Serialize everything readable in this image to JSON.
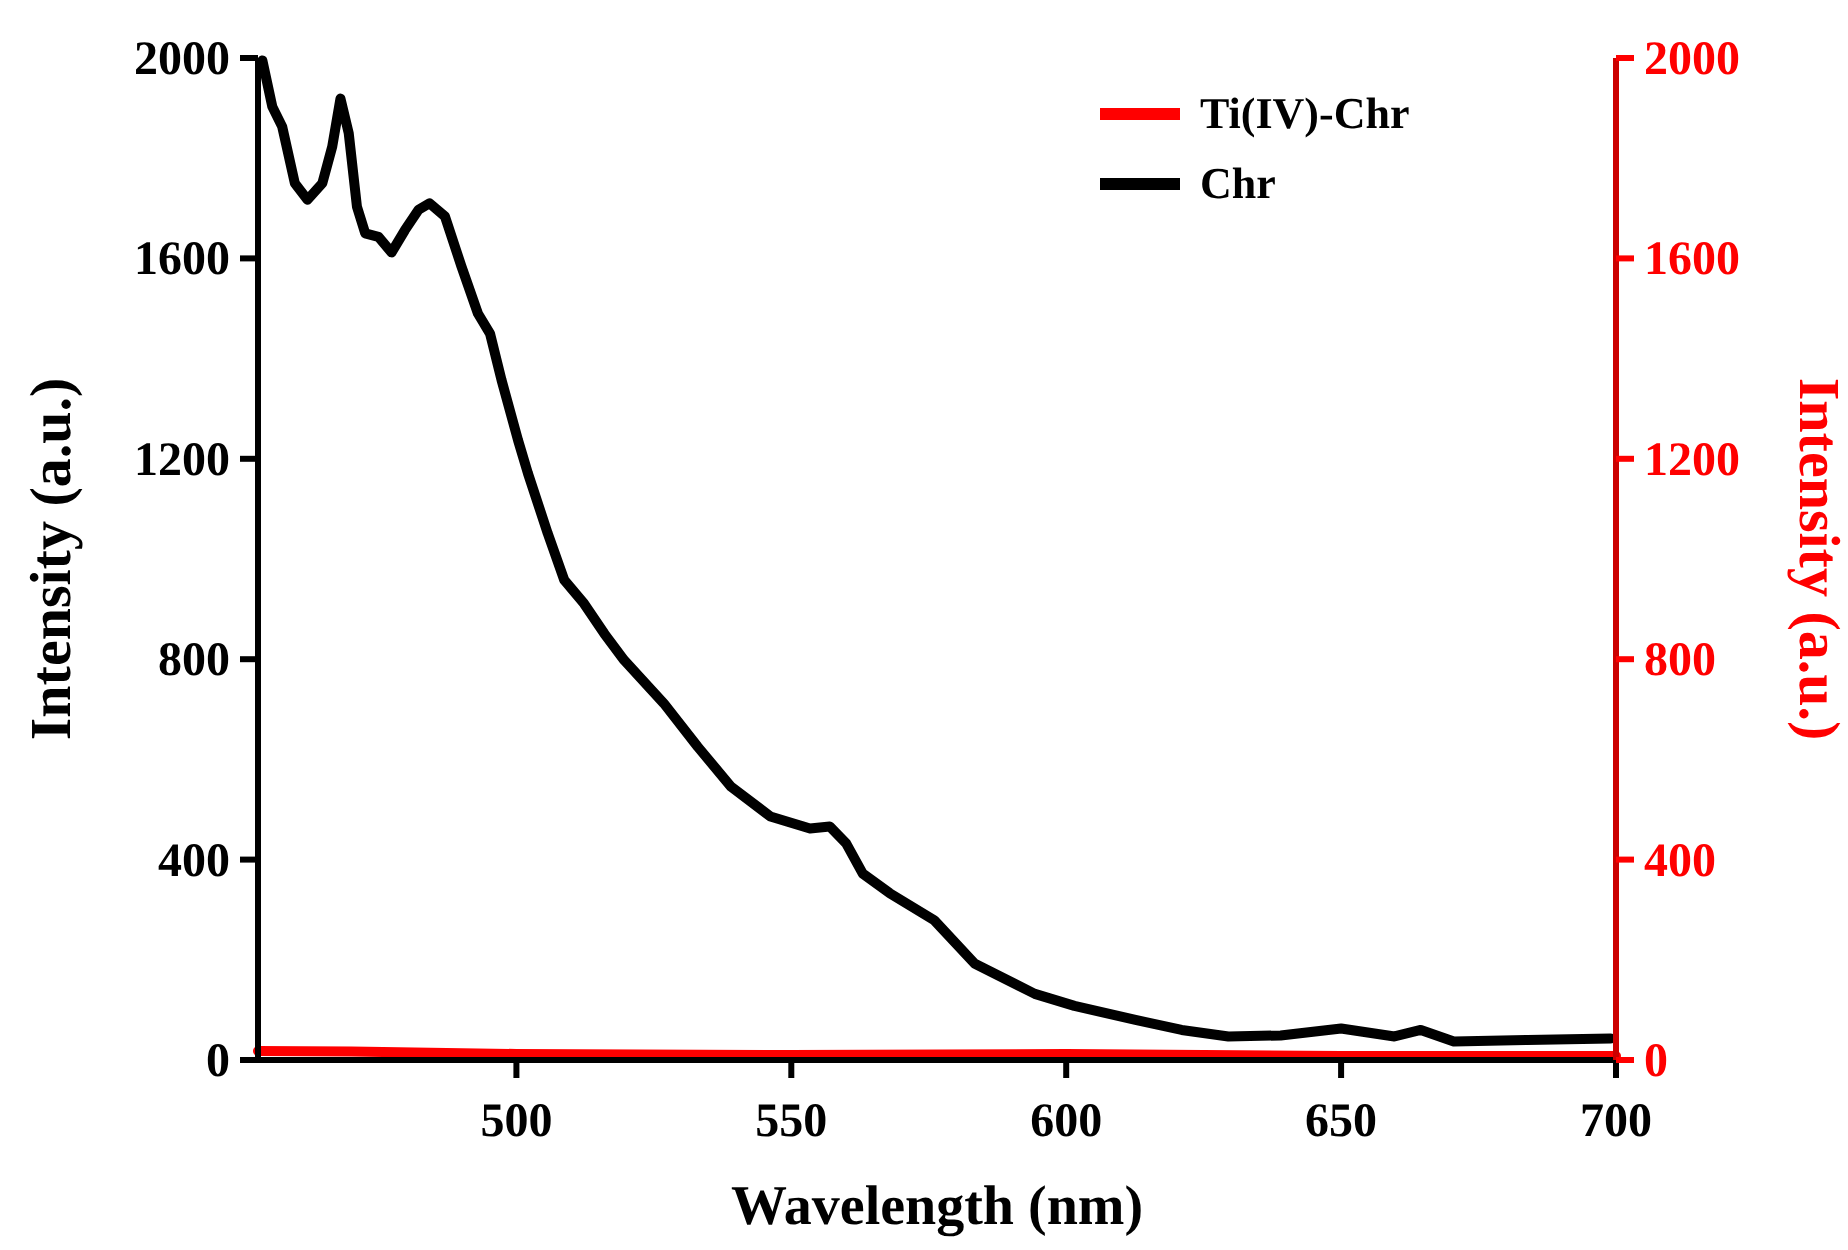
{
  "chart_data": {
    "type": "line",
    "xlabel": "Wavelength (nm)",
    "ylabel": "Intensity (a.u.)",
    "y2label": "Intensity (a.u.)",
    "xlim": [
      453,
      700
    ],
    "xticks": [
      500,
      550,
      600,
      650,
      700
    ],
    "ylim": [
      0,
      2000
    ],
    "yticks": [
      0,
      400,
      800,
      1200,
      1600,
      2000
    ],
    "y2lim": [
      0,
      2000
    ],
    "y2ticks": [
      0,
      400,
      800,
      1200,
      1600,
      2000
    ],
    "grid": false,
    "legend": "top right",
    "line_style": "solid",
    "series": [
      {
        "name": "Ti(IV)-Chr",
        "color": "#ff0000",
        "x": [
          453,
          470,
          500,
          550,
          600,
          650,
          700
        ],
        "values": [
          18,
          17,
          12,
          10,
          12,
          8,
          8
        ]
      },
      {
        "name": "Chr",
        "color": "#000000",
        "x": [
          453.8,
          455.6,
          457.4,
          459.7,
          462,
          464.7,
          466.5,
          468,
          469.5,
          471,
          472.5,
          474.9,
          477.3,
          479.7,
          482.2,
          484.2,
          487,
          490,
          493,
          495.2,
          497.3,
          500.3,
          502.1,
          505.7,
          508.7,
          512.3,
          516,
          519.6,
          526.8,
          533,
          539,
          546.2,
          553.4,
          557,
          560,
          563,
          567.9,
          576,
          583.4,
          594.3,
          601.5,
          612.6,
          621,
          629.5,
          639,
          650,
          659.7,
          664.5,
          670.5,
          683.9,
          699
        ],
        "values": [
          1995,
          1903,
          1863,
          1750,
          1717,
          1750,
          1823,
          1919,
          1850,
          1703,
          1650,
          1643,
          1612,
          1656,
          1697,
          1710,
          1684,
          1584,
          1490,
          1450,
          1357,
          1237,
          1171,
          1051,
          958,
          911,
          851,
          798,
          712,
          625,
          546,
          486,
          462,
          466,
          432,
          372,
          333,
          279,
          192,
          132,
          108,
          80,
          60,
          47,
          49,
          63,
          47,
          60,
          37,
          40,
          43
        ]
      }
    ]
  }
}
